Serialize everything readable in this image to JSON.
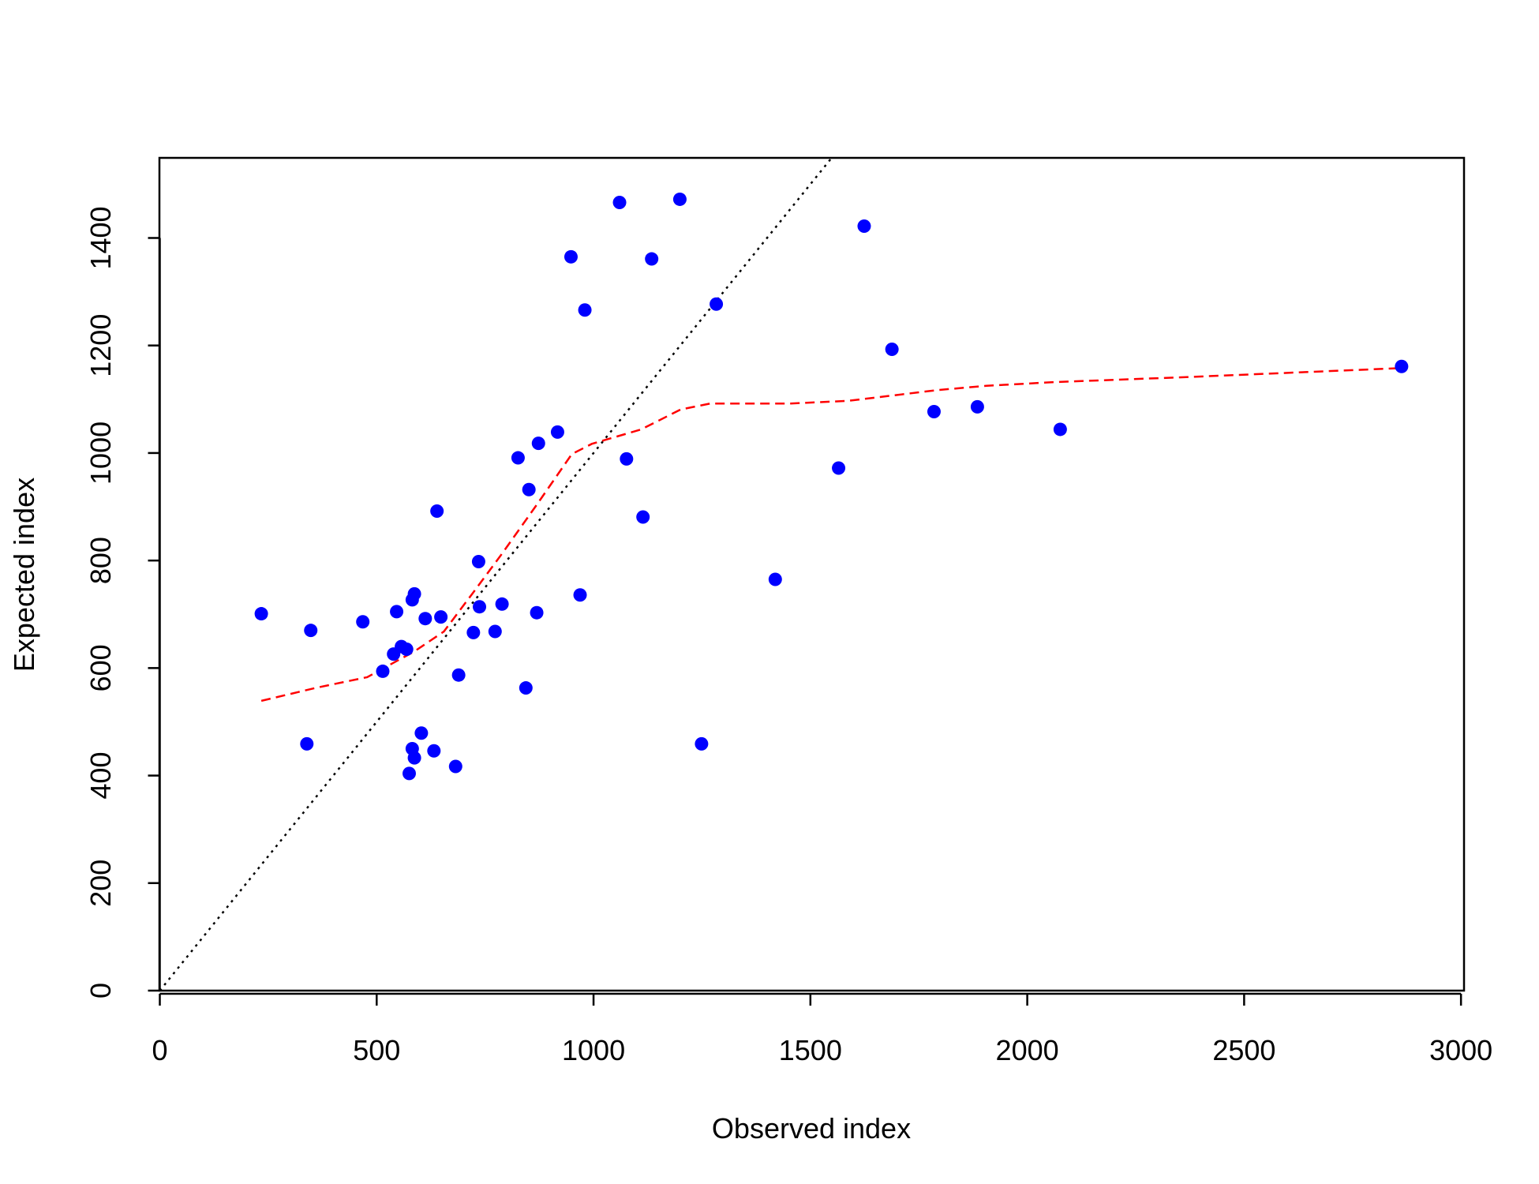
{
  "chart_data": {
    "type": "scatter",
    "xlabel": "Observed index",
    "ylabel": "Expected index",
    "xlim": [
      0,
      3007
    ],
    "ylim": [
      0,
      1549
    ],
    "xticks": [
      0,
      500,
      1000,
      1500,
      2000,
      2500,
      3000
    ],
    "yticks": [
      0,
      200,
      400,
      600,
      800,
      1000,
      1200,
      1400
    ],
    "points": {
      "color": "#0000ff",
      "x": [
        234,
        339,
        348,
        468,
        514,
        539,
        546,
        557,
        569,
        575,
        582,
        582,
        587,
        587,
        603,
        612,
        632,
        639,
        648,
        682,
        689,
        723,
        737,
        735,
        773,
        789,
        826,
        844,
        851,
        869,
        873,
        917,
        948,
        969,
        980,
        1060,
        1076,
        1114,
        1134,
        1199,
        1249,
        1283,
        1419,
        1565,
        1624,
        1688,
        1785,
        1885,
        2076,
        2863
      ],
      "y": [
        701,
        459,
        670,
        686,
        594,
        626,
        705,
        640,
        635,
        404,
        727,
        450,
        738,
        433,
        479,
        692,
        446,
        892,
        695,
        417,
        587,
        666,
        714,
        798,
        668,
        719,
        991,
        563,
        932,
        703,
        1018,
        1039,
        1365,
        736,
        1266,
        1466,
        989,
        881,
        1361,
        1472,
        459,
        1277,
        765,
        972,
        1422,
        1193,
        1077,
        1086,
        1044,
        1161
      ]
    },
    "smooth": {
      "color": "#ff0000",
      "style": "dashed",
      "x": [
        234,
        359,
        478,
        587,
        655,
        723,
        791,
        871,
        950,
        996,
        1110,
        1201,
        1269,
        1451,
        1587,
        1792,
        1906,
        2065,
        2361,
        2863
      ],
      "y": [
        539,
        563,
        583,
        631,
        668,
        741,
        815,
        906,
        998,
        1017,
        1044,
        1081,
        1092,
        1092,
        1097,
        1117,
        1125,
        1132,
        1141,
        1158
      ]
    },
    "reference_line": {
      "intercept": 0,
      "slope": 1,
      "color": "#000000",
      "style": "dotted"
    }
  }
}
